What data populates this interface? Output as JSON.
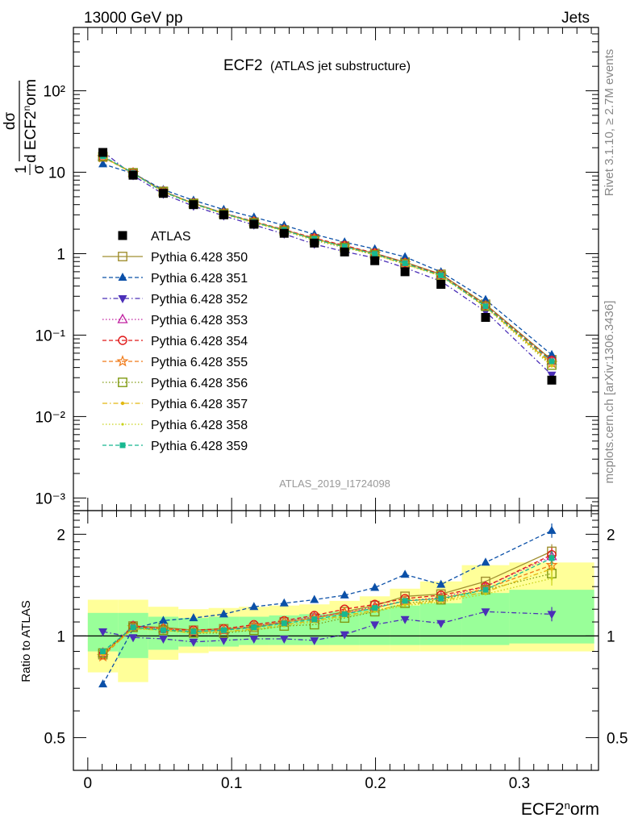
{
  "header": {
    "left": "13000 GeV pp",
    "right": "Jets",
    "side_top": "Rivet 3.1.10, ≥ 2.7M events",
    "side_bottom": "mcplots.cern.ch [arXiv:1306.3436]"
  },
  "main_title": {
    "main": "ECF2",
    "sub": "(ATLAS jet substructure)"
  },
  "analysis_id": "ATLAS_2019_I1724098",
  "ylabel_main": "1/σ dσ/dECF2norm",
  "ylabel_ratio": "Ratio to ATLAS",
  "xlabel": {
    "base": "ECF2",
    "sup": "n",
    "rest": "orm"
  },
  "chart_data": {
    "type": "line",
    "x": [
      0.0105,
      0.0315,
      0.0525,
      0.0735,
      0.0945,
      0.1155,
      0.1365,
      0.1575,
      0.1785,
      0.1995,
      0.2205,
      0.2455,
      0.2765,
      0.3225
    ],
    "xlim": [
      -0.01,
      0.355
    ],
    "main_ylim": [
      0.0007,
      600
    ],
    "main_yscale": "log",
    "ratio_ylim": [
      0.4,
      2.35
    ],
    "ratio_yscale": "log",
    "x_ticks": [
      "0",
      "0.1",
      "0.2",
      "0.3"
    ],
    "main_y_ticks": [
      "10⁻³",
      "10⁻²",
      "10⁻¹",
      "1",
      "10",
      "10²"
    ],
    "ratio_y_ticks": [
      "0.5",
      "1",
      "2"
    ],
    "legend_position": "middle-left",
    "data": {
      "name": "ATLAS",
      "values": [
        17.5,
        9.2,
        5.5,
        4.0,
        3.0,
        2.3,
        1.78,
        1.35,
        1.05,
        0.82,
        0.6,
        0.42,
        0.165,
        0.028
      ]
    },
    "series": [
      {
        "name": "Pythia 6.428 350",
        "color": "#a08f30",
        "marker": "square-open",
        "dash": "",
        "ratio": [
          0.88,
          1.07,
          1.06,
          1.04,
          1.05,
          1.06,
          1.1,
          1.13,
          1.18,
          1.23,
          1.31,
          1.33,
          1.45,
          1.78
        ]
      },
      {
        "name": "Pythia 6.428 351",
        "color": "#0b50a8",
        "marker": "triangle-up",
        "dash": "5,3",
        "ratio": [
          0.72,
          1.05,
          1.11,
          1.13,
          1.16,
          1.22,
          1.25,
          1.28,
          1.32,
          1.39,
          1.52,
          1.42,
          1.65,
          2.05
        ]
      },
      {
        "name": "Pythia 6.428 352",
        "color": "#4b2fb8",
        "marker": "triangle-down",
        "dash": "6,3,1.5,3",
        "ratio": [
          1.03,
          0.99,
          0.98,
          0.96,
          0.97,
          0.98,
          0.98,
          0.97,
          1.01,
          1.08,
          1.12,
          1.09,
          1.18,
          1.16
        ]
      },
      {
        "name": "Pythia 6.428 353",
        "color": "#c020a0",
        "marker": "triangle-up-open",
        "dash": "1.5,2.5",
        "ratio": [
          0.89,
          1.07,
          1.05,
          1.03,
          1.04,
          1.07,
          1.1,
          1.14,
          1.17,
          1.22,
          1.27,
          1.3,
          1.4,
          1.72
        ]
      },
      {
        "name": "Pythia 6.428 354",
        "color": "#e01818",
        "marker": "circle-open",
        "dash": "5,3",
        "ratio": [
          0.88,
          1.07,
          1.05,
          1.04,
          1.05,
          1.08,
          1.11,
          1.15,
          1.2,
          1.24,
          1.29,
          1.32,
          1.4,
          1.74
        ]
      },
      {
        "name": "Pythia 6.428 355",
        "color": "#f07a18",
        "marker": "star-open",
        "dash": "5,3",
        "ratio": [
          0.87,
          1.06,
          1.05,
          1.03,
          1.04,
          1.07,
          1.1,
          1.13,
          1.17,
          1.21,
          1.27,
          1.29,
          1.38,
          1.62
        ]
      },
      {
        "name": "Pythia 6.428 356",
        "color": "#7f9a12",
        "marker": "square-open",
        "dash": "1.5,2.5",
        "ratio": [
          0.89,
          1.06,
          1.04,
          1.02,
          1.02,
          1.04,
          1.07,
          1.08,
          1.13,
          1.18,
          1.25,
          1.28,
          1.37,
          1.53
        ]
      },
      {
        "name": "Pythia 6.428 357",
        "color": "#e2b810",
        "marker": "dot",
        "dash": "6,3,1.5,3",
        "ratio": [
          0.88,
          1.05,
          1.04,
          1.02,
          1.03,
          1.05,
          1.08,
          1.11,
          1.15,
          1.19,
          1.24,
          1.27,
          1.35,
          1.58
        ]
      },
      {
        "name": "Pythia 6.428 358",
        "color": "#c8d21a",
        "marker": "dot-small",
        "dash": "1.5,2.5",
        "ratio": [
          0.89,
          1.05,
          1.04,
          1.02,
          1.03,
          1.04,
          1.07,
          1.1,
          1.14,
          1.18,
          1.23,
          1.26,
          1.33,
          1.48
        ]
      },
      {
        "name": "Pythia 6.428 359",
        "color": "#18b890",
        "marker": "square",
        "dash": "5,3",
        "ratio": [
          0.9,
          1.06,
          1.04,
          1.03,
          1.04,
          1.06,
          1.09,
          1.12,
          1.16,
          1.21,
          1.27,
          1.29,
          1.37,
          1.7
        ]
      }
    ],
    "bands": {
      "edges": [
        0,
        0.021,
        0.042,
        0.063,
        0.084,
        0.105,
        0.126,
        0.147,
        0.168,
        0.189,
        0.21,
        0.231,
        0.26,
        0.293,
        0.352
      ],
      "inner_lo": [
        0.9,
        0.86,
        0.91,
        0.93,
        0.93,
        0.94,
        0.94,
        0.94,
        0.94,
        0.94,
        0.94,
        0.94,
        0.94,
        0.95
      ],
      "inner_hi": [
        1.17,
        1.17,
        1.14,
        1.13,
        1.14,
        1.14,
        1.15,
        1.16,
        1.18,
        1.2,
        1.23,
        1.25,
        1.34,
        1.37
      ],
      "outer_lo": [
        0.78,
        0.73,
        0.85,
        0.89,
        0.9,
        0.9,
        0.9,
        0.9,
        0.9,
        0.9,
        0.9,
        0.9,
        0.9,
        0.9
      ],
      "outer_hi": [
        1.28,
        1.28,
        1.22,
        1.2,
        1.21,
        1.22,
        1.23,
        1.24,
        1.27,
        1.31,
        1.38,
        1.45,
        1.62,
        1.65
      ]
    }
  }
}
